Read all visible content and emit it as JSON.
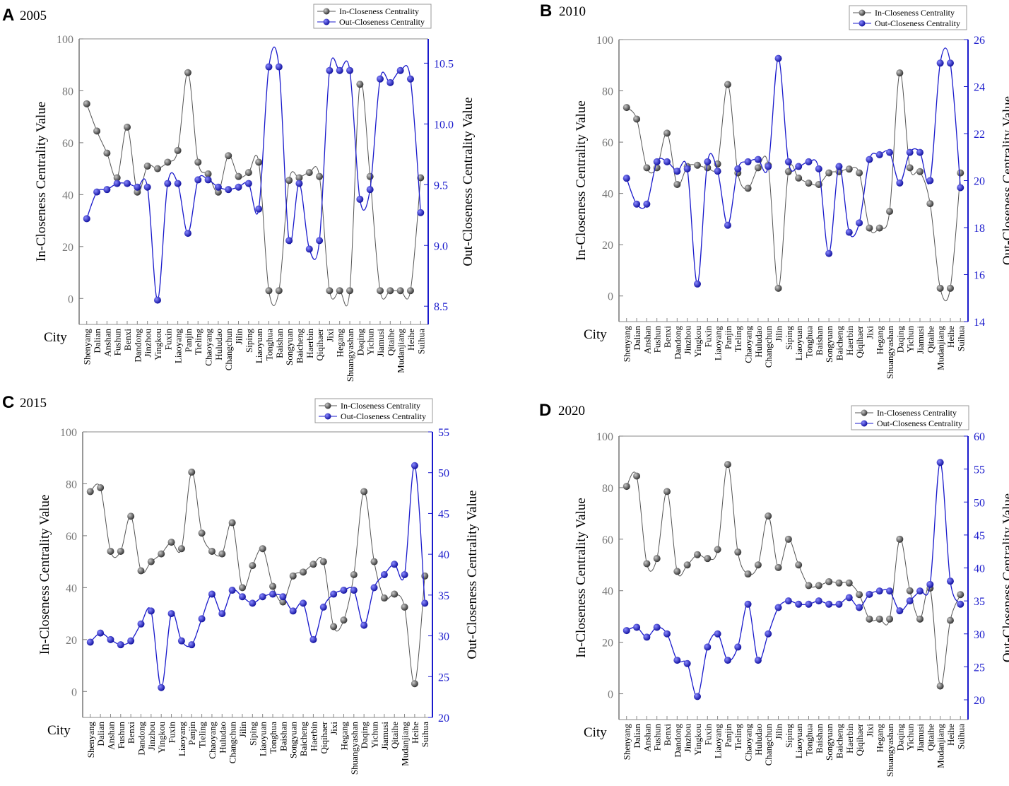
{
  "legend": {
    "in_label": "In-Closeness Centrality",
    "out_label": "Out-Closeness Centrality"
  },
  "axis_labels": {
    "left": "In-Closeness Centrality Value",
    "right": "Out-Closeness Centrality Value",
    "x": "City"
  },
  "colors": {
    "in_series": "#555555",
    "out_series": "#1a1acc",
    "left_axis": "#777777",
    "right_axis": "#1a1acc"
  },
  "chart_data": [
    {
      "panel": "A",
      "title": "2005",
      "type": "line",
      "categories": [
        "Shenyang",
        "Dalian",
        "Anshan",
        "Fushun",
        "Benxi",
        "Dandong",
        "Jinzhou",
        "Yingkou",
        "Fuxin",
        "Liaoyang",
        "Panjin",
        "Tieling",
        "Chaoyang",
        "Huludao",
        "Changchun",
        "Jilin",
        "Siping",
        "Liaoyuan",
        "Tonghua",
        "Baishan",
        "Songyuan",
        "Baicheng",
        "Haerbin",
        "Qiqihaer",
        "Jixi",
        "Hegang",
        "Shuangyashan",
        "Daqing",
        "Yichun",
        "Jiamusi",
        "Qitaihe",
        "Mudanjiang",
        "Heihe",
        "Suihua"
      ],
      "left_ylim": [
        -10,
        100
      ],
      "left_ticks": [
        0,
        20,
        40,
        60,
        80,
        100
      ],
      "right_ylim": [
        8.35,
        10.7
      ],
      "right_ticks": [
        8.5,
        9.0,
        9.5,
        10.0,
        10.5
      ],
      "series": [
        {
          "name": "In-Closeness Centrality",
          "axis": "left",
          "values": [
            75,
            64.5,
            56,
            46.5,
            66,
            41,
            51,
            50,
            52.5,
            57,
            87,
            52.5,
            48,
            41,
            55,
            47,
            48.5,
            52.5,
            3,
            3,
            45.5,
            46.5,
            48.5,
            47,
            3,
            3,
            3,
            82.5,
            47,
            3,
            3,
            3,
            3,
            46.5
          ]
        },
        {
          "name": "Out-Closeness Centrality",
          "axis": "right",
          "values": [
            9.22,
            9.44,
            9.46,
            9.51,
            9.51,
            9.48,
            9.48,
            8.55,
            9.51,
            9.51,
            9.1,
            9.54,
            9.54,
            9.48,
            9.46,
            9.48,
            9.51,
            9.3,
            10.47,
            10.47,
            9.04,
            9.51,
            8.97,
            9.04,
            10.44,
            10.44,
            10.44,
            9.38,
            9.46,
            10.37,
            10.34,
            10.44,
            10.37,
            9.27
          ]
        }
      ]
    },
    {
      "panel": "B",
      "title": "2010",
      "type": "line",
      "categories": [
        "Shenyang",
        "Dalian",
        "Anshan",
        "Fushun",
        "Benxi",
        "Dandong",
        "Jinzhou",
        "Yingkou",
        "Fuxin",
        "Liaoyang",
        "Panjin",
        "Tieling",
        "Chaoyang",
        "Huludao",
        "Changchun",
        "Jilin",
        "Siping",
        "Liaoyuan",
        "Tonghua",
        "Baishan",
        "Songyuan",
        "Baicheng",
        "Haerbin",
        "Qiqihaer",
        "Jixi",
        "Hegang",
        "Shuangyashan",
        "Daqing",
        "Yichun",
        "Jiamusi",
        "Qitaihe",
        "Mudanjiang",
        "Heihe",
        "Suihua"
      ],
      "left_ylim": [
        -10,
        100
      ],
      "left_ticks": [
        0,
        20,
        40,
        60,
        80,
        100
      ],
      "right_ylim": [
        14,
        26
      ],
      "right_ticks": [
        14,
        16,
        18,
        20,
        22,
        24,
        26
      ],
      "series": [
        {
          "name": "In-Closeness Centrality",
          "axis": "left",
          "values": [
            73.5,
            69,
            50,
            50,
            63.5,
            43.5,
            50.5,
            51,
            50,
            51.5,
            82.5,
            48,
            42,
            50,
            51,
            3,
            48.5,
            46,
            44,
            43.5,
            48,
            48.5,
            49.5,
            48,
            26.5,
            26.5,
            33,
            87,
            50,
            48.5,
            36,
            3,
            3,
            48
          ]
        },
        {
          "name": "Out-Closeness Centrality",
          "axis": "right",
          "values": [
            20.1,
            19,
            19,
            20.8,
            20.8,
            20.4,
            20.5,
            15.6,
            20.8,
            20.4,
            18.1,
            20.5,
            20.8,
            20.9,
            20.6,
            25.2,
            20.8,
            20.6,
            20.8,
            20.5,
            16.9,
            20.6,
            17.8,
            18.2,
            20.9,
            21.1,
            21.2,
            19.9,
            21.2,
            21.2,
            20,
            25,
            25,
            19.7
          ]
        }
      ]
    },
    {
      "panel": "C",
      "title": "2015",
      "type": "line",
      "categories": [
        "Shenyang",
        "Dalian",
        "Anshan",
        "Fushun",
        "Benxi",
        "Dandong",
        "Jinzhou",
        "Yingkou",
        "Fuxin",
        "Liaoyang",
        "Panjin",
        "Tieling",
        "Chaoyang",
        "Huludao",
        "Changchun",
        "Jilin",
        "Siping",
        "Liaoyuan",
        "Tonghua",
        "Baishan",
        "Songyuan",
        "Baicheng",
        "Haerbin",
        "Qiqihaer",
        "Jixi",
        "Hegang",
        "Shuangyashan",
        "Daqing",
        "Yichun",
        "Jiamusi",
        "Qitaihe",
        "Mudanjiang",
        "Heihe",
        "Suihua"
      ],
      "left_ylim": [
        -10,
        100
      ],
      "left_ticks": [
        0,
        20,
        40,
        60,
        80,
        100
      ],
      "right_ylim": [
        20,
        55
      ],
      "right_ticks": [
        20,
        25,
        30,
        35,
        40,
        45,
        50,
        55
      ],
      "series": [
        {
          "name": "In-Closeness Centrality",
          "axis": "left",
          "values": [
            77,
            78.5,
            54,
            54,
            67.5,
            46.5,
            50,
            53,
            57.5,
            55,
            84.5,
            61,
            54,
            53,
            65,
            40,
            48.5,
            55,
            40.5,
            34.5,
            44.5,
            46,
            49,
            50,
            25,
            27.5,
            45,
            77,
            50,
            36,
            37.5,
            32.5,
            3,
            44.5
          ]
        },
        {
          "name": "Out-Closeness Centrality",
          "axis": "left_equiv",
          "values": [
            19,
            22.5,
            20,
            18,
            19.5,
            26,
            31,
            1.5,
            30,
            19.5,
            18,
            28,
            37.5,
            30,
            39,
            36.5,
            34,
            36.5,
            37.5,
            36.5,
            31,
            34,
            20,
            32.5,
            37.5,
            39,
            39,
            25.5,
            40,
            45,
            49,
            45,
            87,
            34
          ]
        }
      ]
    },
    {
      "panel": "D",
      "title": "2020",
      "type": "line",
      "categories": [
        "Shenyang",
        "Dalian",
        "Anshan",
        "Fushun",
        "Benxi",
        "Dandong",
        "Jinzhou",
        "Yingkou",
        "Fuxin",
        "Liaoyang",
        "Panjin",
        "Tieling",
        "Chaoyang",
        "Huludao",
        "Changchun",
        "Jilin",
        "Siping",
        "Liaoyuan",
        "Tonghua",
        "Baishan",
        "Songyuan",
        "Baicheng",
        "Haerbin",
        "Qiqihaer",
        "Jixi",
        "Hegang",
        "Shuangyashan",
        "Daqing",
        "Yichun",
        "Jiamusi",
        "Qitaihe",
        "Mudanjiang",
        "Heihe",
        "Suihua"
      ],
      "left_ylim": [
        -10,
        100
      ],
      "left_ticks": [
        0,
        20,
        40,
        60,
        80,
        100
      ],
      "right_ylim": [
        17,
        60
      ],
      "right_ticks": [
        20,
        25,
        30,
        35,
        40,
        45,
        50,
        55,
        60
      ],
      "series": [
        {
          "name": "In-Closeness Centrality",
          "axis": "left",
          "values": [
            80.5,
            84.5,
            50.5,
            52.5,
            78.5,
            47.5,
            50,
            54,
            52.5,
            56,
            89,
            55,
            46.5,
            50,
            69,
            49,
            60,
            50,
            42,
            42,
            43.5,
            43,
            43,
            38.5,
            29,
            29,
            29,
            60,
            40,
            29,
            41,
            3,
            28.5,
            38.5
          ]
        },
        {
          "name": "Out-Closeness Centrality",
          "axis": "right",
          "values": [
            30.5,
            31,
            29.5,
            31,
            30,
            26,
            25.5,
            20.5,
            28,
            30,
            26,
            28,
            34.5,
            26,
            30,
            34,
            35,
            34.5,
            34.5,
            35,
            34.5,
            34.5,
            35.5,
            34,
            36,
            36.5,
            36.5,
            33.5,
            35,
            36.5,
            37.5,
            56,
            38,
            34.5
          ]
        }
      ]
    }
  ]
}
